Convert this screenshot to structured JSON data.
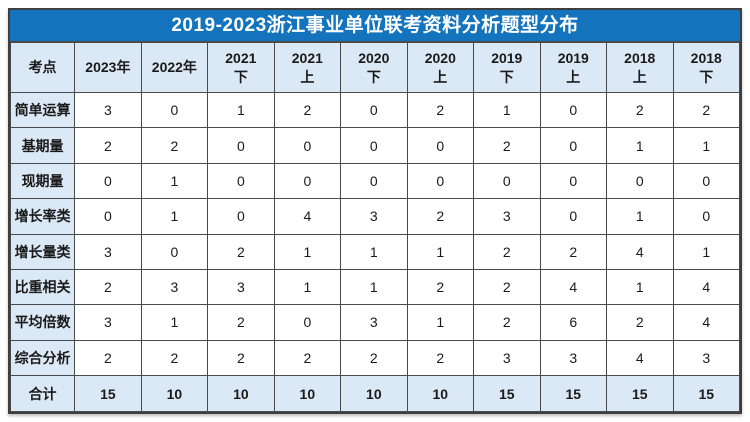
{
  "title": "2019-2023浙江事业单位联考资料分析题型分布",
  "colors": {
    "title_bg": "#1373BD",
    "title_text": "#FFFFFF",
    "header_bg": "#DBE8F5",
    "grid_border": "#4A4A4A",
    "outer_border": "#3E3E3E",
    "text": "#1A1A1A"
  },
  "chart_data": {
    "type": "table",
    "title": "2019-2023浙江事业单位联考资料分析题型分布",
    "corner_label": "考点",
    "categories": [
      "2023年",
      "2022年",
      "2021下",
      "2021上",
      "2020下",
      "2020上",
      "2019下",
      "2019上",
      "2018上",
      "2018下"
    ],
    "series": [
      {
        "name": "简单运算",
        "values": [
          3,
          0,
          1,
          2,
          0,
          2,
          1,
          0,
          2,
          2
        ]
      },
      {
        "name": "基期量",
        "values": [
          2,
          2,
          0,
          0,
          0,
          0,
          2,
          0,
          1,
          1
        ]
      },
      {
        "name": "现期量",
        "values": [
          0,
          1,
          0,
          0,
          0,
          0,
          0,
          0,
          0,
          0
        ]
      },
      {
        "name": "增长率类",
        "values": [
          0,
          1,
          0,
          4,
          3,
          2,
          3,
          0,
          1,
          0
        ]
      },
      {
        "name": "增长量类",
        "values": [
          3,
          0,
          2,
          1,
          1,
          1,
          2,
          2,
          4,
          1
        ]
      },
      {
        "name": "比重相关",
        "values": [
          2,
          3,
          3,
          1,
          1,
          2,
          2,
          4,
          1,
          4
        ]
      },
      {
        "name": "平均倍数",
        "values": [
          3,
          1,
          2,
          0,
          3,
          1,
          2,
          6,
          2,
          4
        ]
      },
      {
        "name": "综合分析",
        "values": [
          2,
          2,
          2,
          2,
          2,
          2,
          3,
          3,
          4,
          3
        ]
      }
    ],
    "total_row": {
      "name": "合计",
      "values": [
        15,
        10,
        10,
        10,
        10,
        10,
        15,
        15,
        15,
        15
      ]
    }
  }
}
